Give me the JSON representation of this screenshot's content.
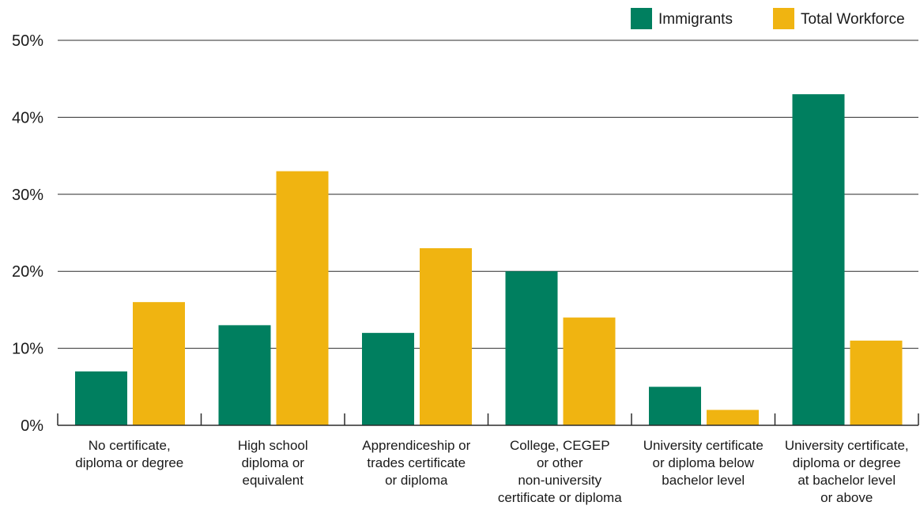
{
  "chart_data": {
    "type": "bar",
    "title": "",
    "xlabel": "",
    "ylabel": "",
    "ylim": [
      0,
      50
    ],
    "yticks": [
      0,
      10,
      20,
      30,
      40,
      50
    ],
    "ytick_labels": [
      "0%",
      "10%",
      "20%",
      "30%",
      "40%",
      "50%"
    ],
    "grid": true,
    "legend_position": "top-right",
    "categories": [
      [
        "No certificate,",
        "diploma or degree"
      ],
      [
        "High school",
        "diploma or",
        "equivalent"
      ],
      [
        "Apprendiceship or",
        "trades certificate",
        "or diploma"
      ],
      [
        "College, CEGEP",
        "or other",
        "non-university",
        "certificate or diploma"
      ],
      [
        "University certificate",
        "or diploma below",
        "bachelor level"
      ],
      [
        "University certificate,",
        "diploma or degree",
        "at bachelor level",
        "or above"
      ]
    ],
    "series": [
      {
        "name": "Immigrants",
        "color": "#007f5f",
        "values": [
          7,
          13,
          12,
          20,
          5,
          43
        ]
      },
      {
        "name": "Total Workforce",
        "color": "#f0b411",
        "values": [
          16,
          33,
          23,
          14,
          2,
          11
        ]
      }
    ]
  }
}
